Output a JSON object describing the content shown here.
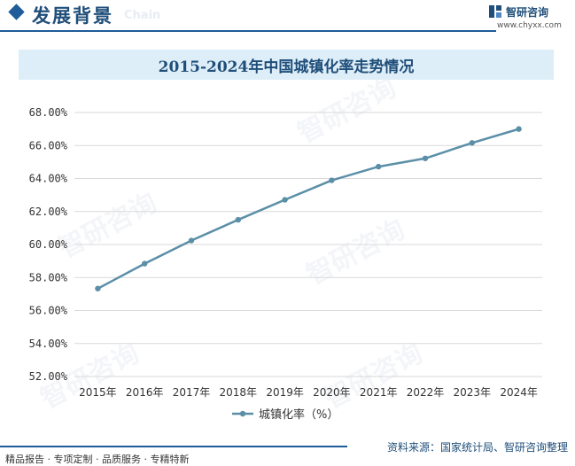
{
  "header": {
    "title": "发展背景",
    "ghost_text": "Chain"
  },
  "brand": {
    "name": "智研咨询",
    "url": "www.chyxx.com",
    "logo_icon": "chyxx-logo-icon"
  },
  "watermark_text": "智研咨询",
  "chart_data": {
    "type": "line",
    "title": "2015-2024年中国城镇化率走势情况",
    "categories": [
      "2015年",
      "2016年",
      "2017年",
      "2018年",
      "2019年",
      "2020年",
      "2021年",
      "2022年",
      "2023年",
      "2024年"
    ],
    "series": [
      {
        "name": "城镇化率（%）",
        "values": [
          57.33,
          58.84,
          60.24,
          61.5,
          62.71,
          63.89,
          64.72,
          65.22,
          66.16,
          67.0
        ],
        "color": "#5b8fa8"
      }
    ],
    "ylim": [
      52,
      68
    ],
    "ytick_step": 2,
    "ytick_labels": [
      "52.00%",
      "54.00%",
      "56.00%",
      "58.00%",
      "60.00%",
      "62.00%",
      "64.00%",
      "66.00%",
      "68.00%"
    ],
    "grid": true,
    "legend": "bottom",
    "xlabel": "",
    "ylabel": ""
  },
  "footer": {
    "left": "精品报告 · 专项定制 · 品质服务 · 专精特新",
    "right": "资料来源：国家统计局、智研咨询整理"
  }
}
